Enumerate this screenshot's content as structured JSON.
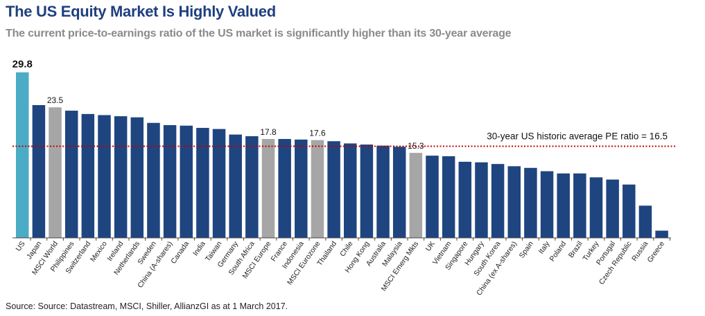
{
  "title": "The US Equity Market Is Highly Valued",
  "subtitle": "The current price-to-earnings ratio of the US market is significantly higher than its 30-year average",
  "source": "Source: Source: Datastream, MSCI, Shiller, AllianzGI as at 1 March 2017.",
  "colors": {
    "title": "#1f3f7f",
    "country_bar": "#1f4580",
    "us_bar": "#4bacc6",
    "msci_bar": "#a6a6a6",
    "average_line": "#c00000"
  },
  "chart_data": {
    "type": "bar",
    "categories": [
      "US",
      "Japan",
      "MSCI World",
      "Philippines",
      "Switzerland",
      "Mexico",
      "Ireland",
      "Netherlands",
      "Sweden",
      "China (A-shares)",
      "Canada",
      "India",
      "Taiwan",
      "Germany",
      "South Africa",
      "MSCI Europe",
      "France",
      "Indonesia",
      "MSCI Eurozone",
      "Thailand",
      "Chile",
      "Hong Kong",
      "Australia",
      "Malaysia",
      "MSCI Emerg Mkts",
      "UK",
      "Vietnam",
      "Singapore",
      "Hungary",
      "South Korea",
      "China (ex A-shares)",
      "Spain",
      "Italy",
      "Poland",
      "Brazil",
      "Turkey",
      "Portugal",
      "Czech Republic",
      "Russia",
      "Greece"
    ],
    "values": [
      29.8,
      23.9,
      23.5,
      22.9,
      22.3,
      22.1,
      21.9,
      21.7,
      20.7,
      20.3,
      20.2,
      19.8,
      19.6,
      18.6,
      18.3,
      17.8,
      17.8,
      17.7,
      17.6,
      17.4,
      17.0,
      16.8,
      16.6,
      16.4,
      15.3,
      14.8,
      14.7,
      13.7,
      13.6,
      13.3,
      12.9,
      12.6,
      12.0,
      11.6,
      11.6,
      10.9,
      10.5,
      9.6,
      5.8,
      1.3
    ],
    "bar_colors": [
      "us",
      "country",
      "msci",
      "country",
      "country",
      "country",
      "country",
      "country",
      "country",
      "country",
      "country",
      "country",
      "country",
      "country",
      "country",
      "msci",
      "country",
      "country",
      "msci",
      "country",
      "country",
      "country",
      "country",
      "country",
      "msci",
      "country",
      "country",
      "country",
      "country",
      "country",
      "country",
      "country",
      "country",
      "country",
      "country",
      "country",
      "country",
      "country",
      "country",
      "country"
    ],
    "data_labels": [
      {
        "category": "US",
        "text": "29.8"
      },
      {
        "category": "MSCI World",
        "text": "23.5"
      },
      {
        "category": "MSCI Europe",
        "text": "17.8"
      },
      {
        "category": "MSCI Eurozone",
        "text": "17.6"
      },
      {
        "category": "MSCI Emerg Mkts",
        "text": "15.3"
      }
    ],
    "reference_line": {
      "value": 16.5,
      "label": "30-year US historic average PE ratio = 16.5",
      "style": "dotted"
    },
    "ylim": [
      0,
      30
    ],
    "grid": false,
    "legend": "none"
  }
}
